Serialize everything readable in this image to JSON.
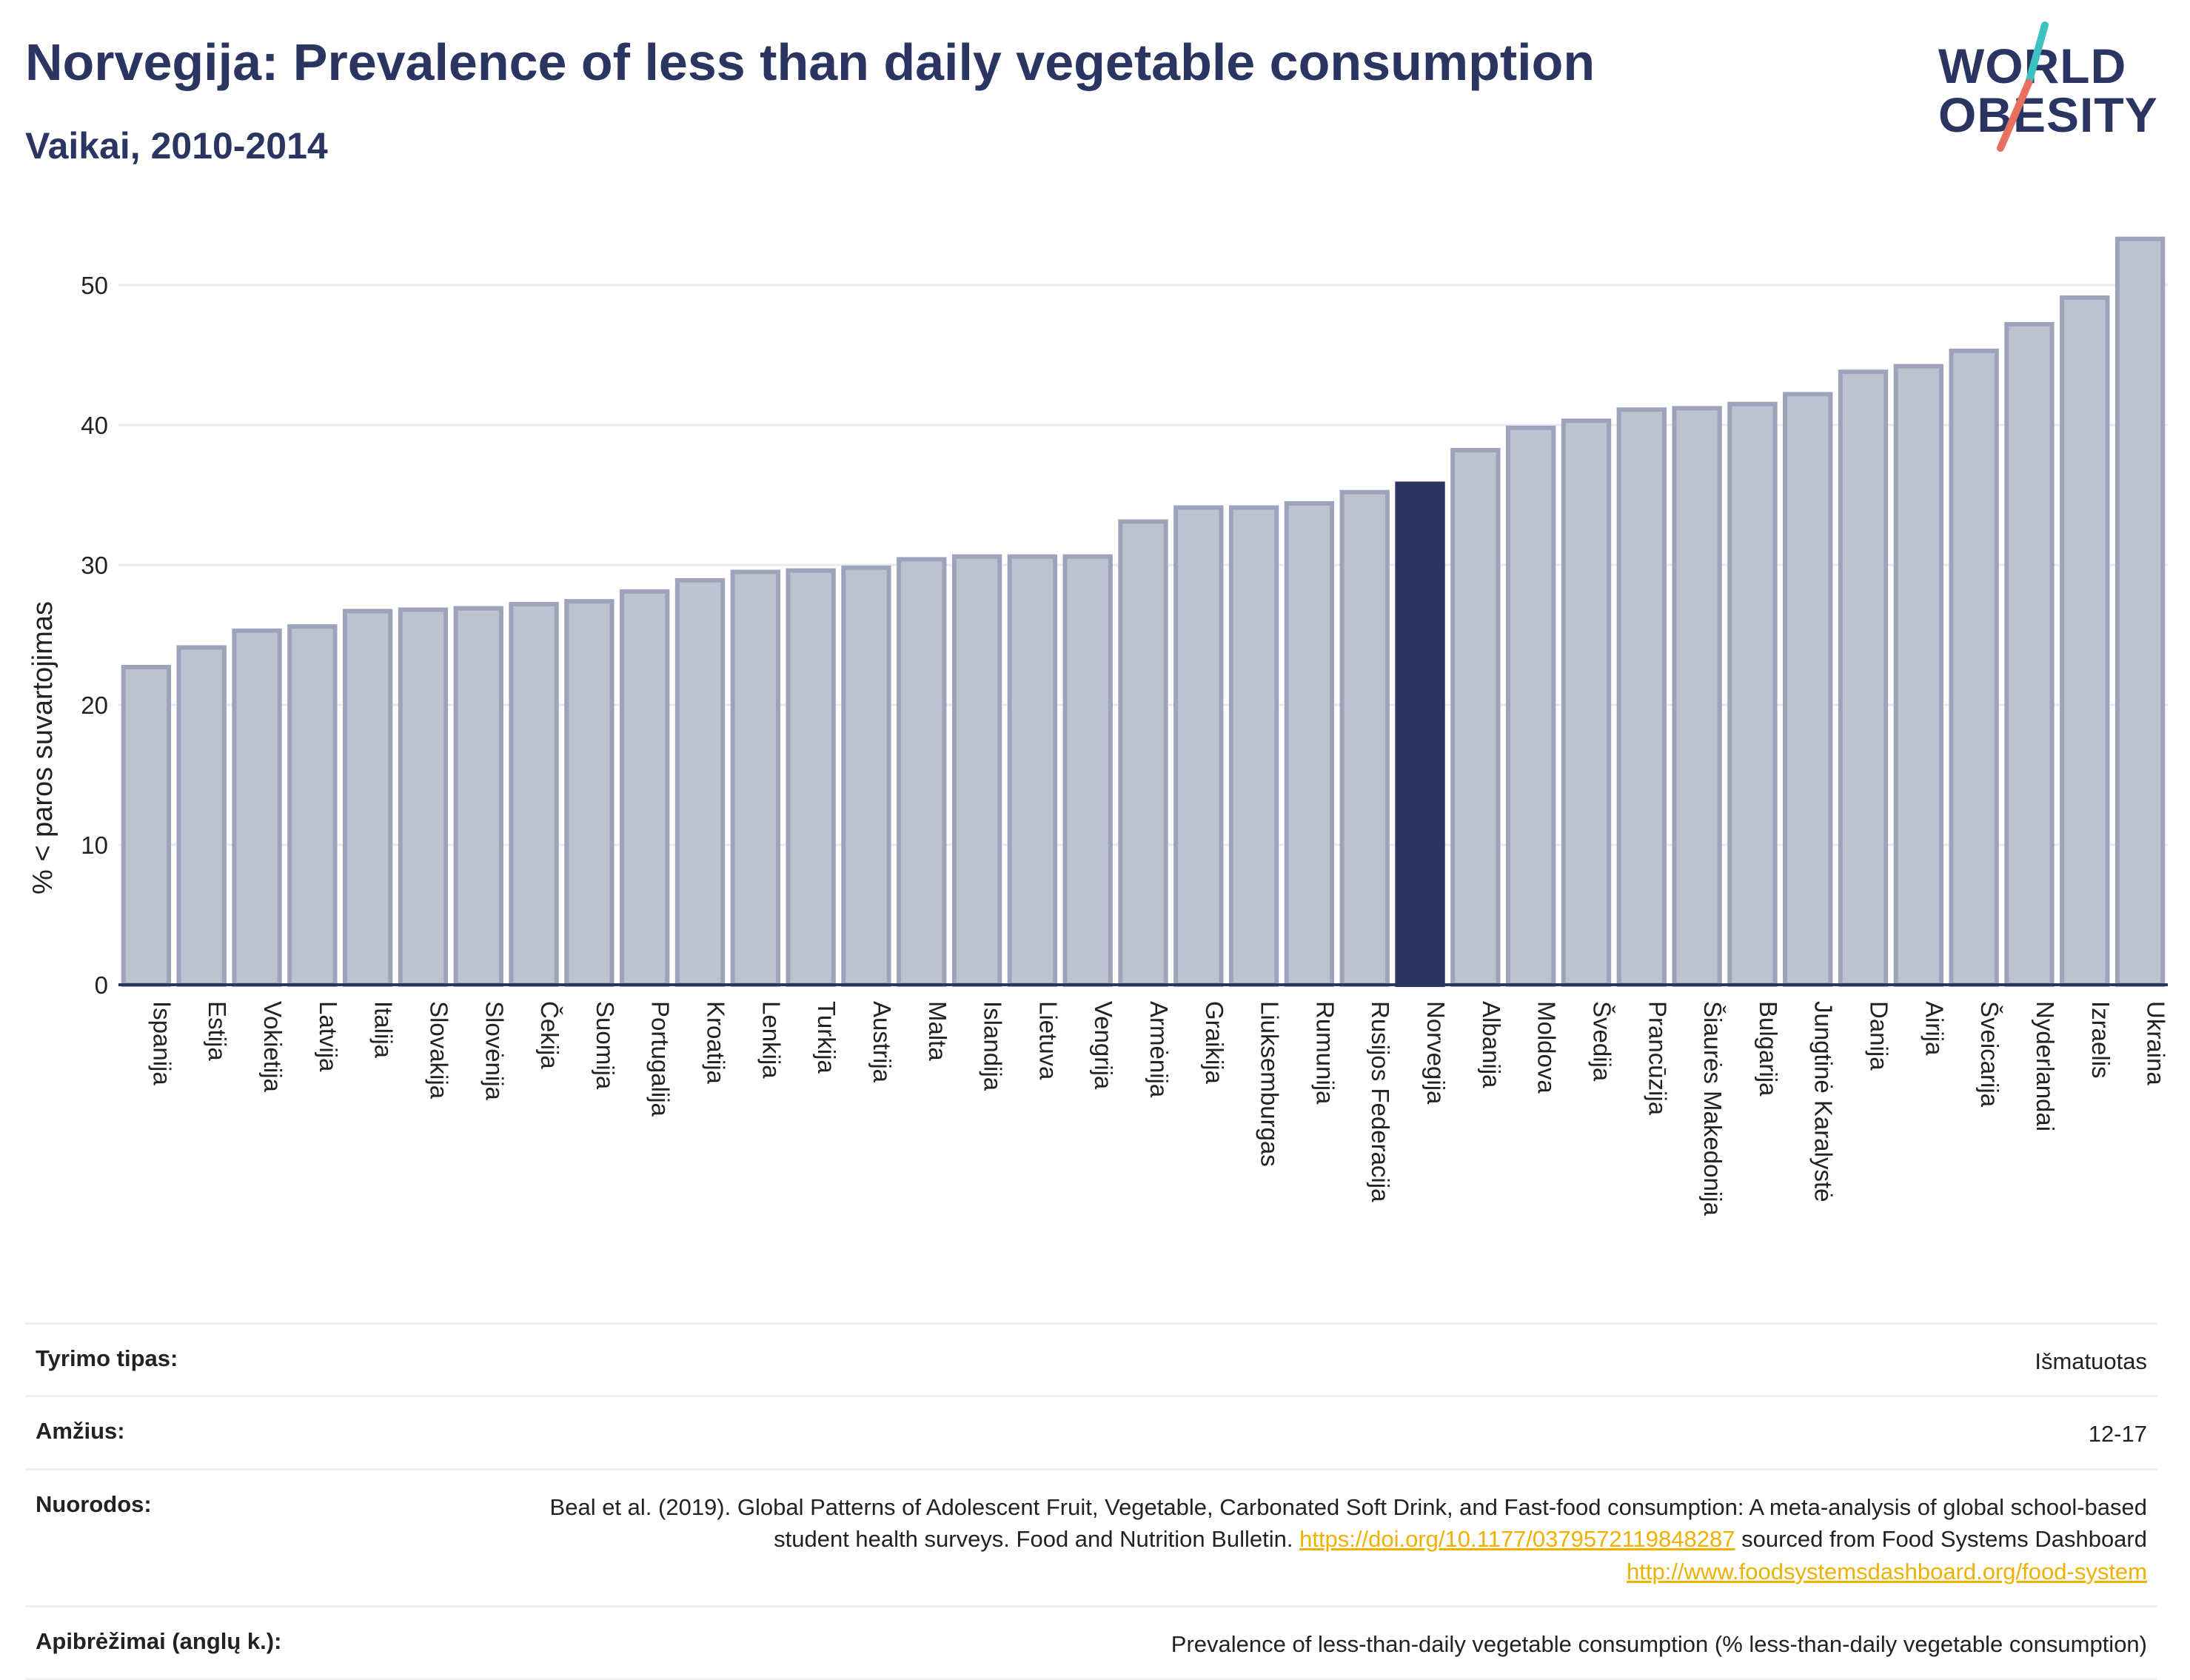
{
  "header": {
    "title": "Norvegija: Prevalence of less than daily vegetable consumption",
    "subtitle": "Vaikai, 2010-2014"
  },
  "logo": {
    "line1": "WORLD",
    "line2": "OBESITY",
    "slash_colors": [
      "#3cc2c0",
      "#e8705f"
    ]
  },
  "colors": {
    "bar": "#bec2cf",
    "bar_border": "#9ea3bc",
    "highlight": "#2b3561",
    "grid": "#e9eaf0",
    "axis": "#2b3561",
    "link": "#f0b000"
  },
  "chart_data": {
    "type": "bar",
    "ylabel": "% < paros suvartojimas",
    "ylim": [
      0,
      55
    ],
    "yticks": [
      0,
      10,
      20,
      30,
      40,
      50
    ],
    "grid": true,
    "highlight": "Norvegija",
    "categories": [
      "Ispanija",
      "Estija",
      "Vokietija",
      "Latvija",
      "Italija",
      "Slovakija",
      "Slovėnija",
      "Čekija",
      "Suomija",
      "Portugalija",
      "Kroatija",
      "Lenkija",
      "Turkija",
      "Austrija",
      "Malta",
      "Islandija",
      "Lietuva",
      "Vengrija",
      "Armėnija",
      "Graikija",
      "Liuksemburgas",
      "Rumunija",
      "Rusijos Federacija",
      "Norvegija",
      "Albanija",
      "Moldova",
      "Švedija",
      "Prancūzija",
      "Šiaurės Makedonija",
      "Bulgarija",
      "Jungtinė Karalystė",
      "Danija",
      "Airija",
      "Šveicarija",
      "Nyderlandai",
      "Izraelis",
      "Ukraina"
    ],
    "values": [
      22.7,
      24.1,
      25.3,
      25.6,
      26.7,
      26.8,
      26.9,
      27.2,
      27.4,
      28.1,
      28.9,
      29.5,
      29.6,
      29.8,
      30.4,
      30.6,
      30.6,
      30.6,
      33.1,
      34.1,
      34.1,
      34.4,
      35.2,
      35.8,
      38.2,
      39.8,
      40.3,
      41.1,
      41.2,
      41.5,
      42.2,
      43.8,
      44.2,
      45.3,
      47.2,
      49.1,
      53.3
    ]
  },
  "info": {
    "rows": [
      {
        "label": "Tyrimo tipas:",
        "value": "Išmatuotas"
      },
      {
        "label": "Amžius:",
        "value": "12-17"
      },
      {
        "label": "Nuorodos:",
        "value_text1": "Beal et al. (2019). Global Patterns of Adolescent Fruit, Vegetable, Carbonated Soft Drink, and Fast-food consumption: A meta-analysis of global school-based student health surveys. Food and Nutrition Bulletin. ",
        "link1": "https://doi.org/10.1177/0379572119848287",
        "value_text2": " sourced from Food Systems Dashboard ",
        "link2": "http://www.foodsystemsdashboard.org/food-system"
      },
      {
        "label": "Apibrėžimai (anglų k.):",
        "value": "Prevalence of less-than-daily vegetable consumption (% less-than-daily vegetable consumption)"
      }
    ]
  }
}
